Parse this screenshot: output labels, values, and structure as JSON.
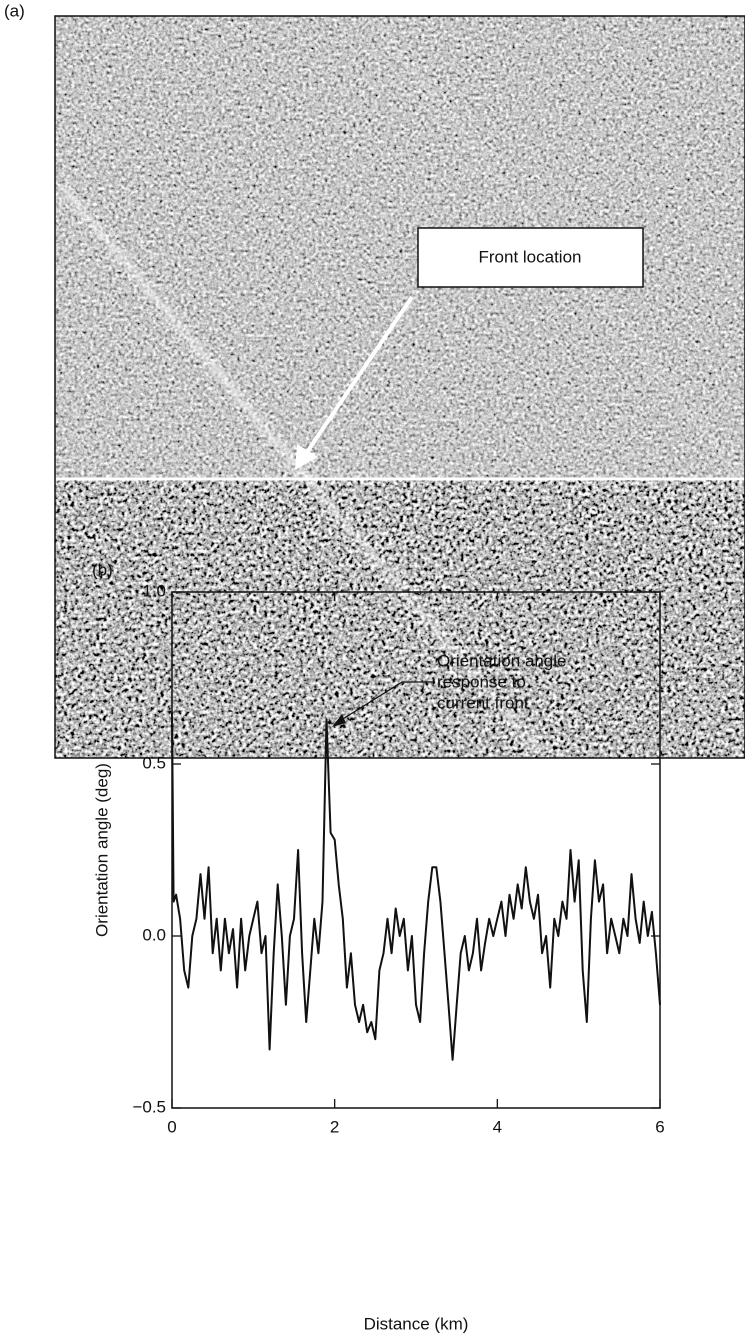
{
  "image_panel": {
    "label": "(a)",
    "annotation": "Front location"
  },
  "chart_data": {
    "type": "line",
    "label": "(b)",
    "xlabel": "Distance (km)",
    "ylabel": "Orientation angle (deg)",
    "annotation": [
      "Orientation angle",
      "response to",
      "current front"
    ],
    "color": "#111111",
    "xlim": [
      0,
      6
    ],
    "ylim": [
      -0.5,
      1.0
    ],
    "xticks": [
      0,
      2,
      4,
      6
    ],
    "yticks": [
      {
        "value": 1.0,
        "label": "1.0"
      },
      0.5,
      {
        "value": 0,
        "label": "0.0"
      },
      {
        "value": -0.5,
        "label": "−0.5"
      }
    ],
    "x": [
      0,
      0.02,
      0.05,
      0.1,
      0.15,
      0.2,
      0.25,
      0.3,
      0.35,
      0.4,
      0.45,
      0.5,
      0.55,
      0.6,
      0.65,
      0.7,
      0.75,
      0.8,
      0.85,
      0.9,
      0.95,
      1.0,
      1.05,
      1.1,
      1.15,
      1.2,
      1.25,
      1.3,
      1.35,
      1.4,
      1.45,
      1.5,
      1.55,
      1.6,
      1.65,
      1.7,
      1.75,
      1.8,
      1.85,
      1.9,
      1.95,
      2.0,
      2.05,
      2.1,
      2.15,
      2.2,
      2.25,
      2.3,
      2.35,
      2.4,
      2.45,
      2.5,
      2.55,
      2.6,
      2.65,
      2.7,
      2.75,
      2.8,
      2.85,
      2.9,
      2.95,
      3.0,
      3.05,
      3.1,
      3.15,
      3.2,
      3.25,
      3.3,
      3.35,
      3.4,
      3.45,
      3.5,
      3.55,
      3.6,
      3.65,
      3.7,
      3.75,
      3.8,
      3.85,
      3.9,
      3.95,
      4.0,
      4.05,
      4.1,
      4.15,
      4.2,
      4.25,
      4.3,
      4.35,
      4.4,
      4.45,
      4.5,
      4.55,
      4.6,
      4.65,
      4.7,
      4.75,
      4.8,
      4.85,
      4.9,
      4.95,
      5.0,
      5.05,
      5.1,
      5.15,
      5.2,
      5.25,
      5.3,
      5.35,
      5.4,
      5.45,
      5.5,
      5.55,
      5.6,
      5.65,
      5.7,
      5.75,
      5.8,
      5.85,
      5.9,
      5.95,
      6.0
    ],
    "values": [
      0.65,
      0.1,
      0.12,
      0.05,
      -0.1,
      -0.15,
      0.0,
      0.05,
      0.18,
      0.05,
      0.2,
      -0.05,
      0.05,
      -0.1,
      0.05,
      -0.05,
      0.02,
      -0.15,
      0.05,
      -0.1,
      0.0,
      0.05,
      0.1,
      -0.05,
      0.0,
      -0.33,
      -0.05,
      0.15,
      0.0,
      -0.2,
      0.0,
      0.05,
      0.25,
      -0.05,
      -0.25,
      -0.1,
      0.05,
      -0.05,
      0.1,
      0.63,
      0.3,
      0.28,
      0.15,
      0.05,
      -0.15,
      -0.05,
      -0.2,
      -0.25,
      -0.2,
      -0.28,
      -0.25,
      -0.3,
      -0.1,
      -0.05,
      0.05,
      -0.05,
      0.08,
      0.0,
      0.05,
      -0.1,
      0.0,
      -0.2,
      -0.25,
      -0.05,
      0.1,
      0.2,
      0.2,
      0.1,
      -0.05,
      -0.2,
      -0.36,
      -0.2,
      -0.05,
      0.0,
      -0.1,
      -0.05,
      0.05,
      -0.1,
      -0.02,
      0.05,
      0.0,
      0.05,
      0.1,
      0.0,
      0.12,
      0.05,
      0.15,
      0.08,
      0.2,
      0.1,
      0.05,
      0.12,
      -0.05,
      0.0,
      -0.15,
      0.05,
      0.0,
      0.1,
      0.05,
      0.25,
      0.1,
      0.22,
      -0.1,
      -0.25,
      0.05,
      0.22,
      0.1,
      0.15,
      -0.05,
      0.05,
      0.0,
      -0.05,
      0.05,
      0.0,
      0.18,
      0.05,
      -0.02,
      0.1,
      0.0,
      0.07,
      -0.05,
      -0.2
    ]
  }
}
